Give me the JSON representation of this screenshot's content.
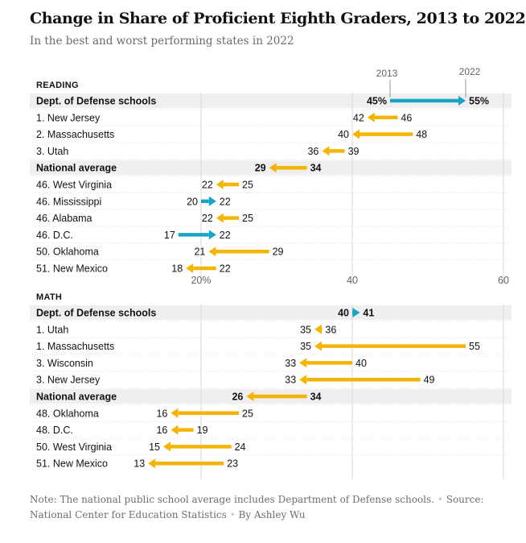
{
  "title": "Change in Share of Proficient Eighth Graders, 2013 to 2022",
  "subtitle": "In the best and worst performing states in 2022",
  "footer": {
    "note": "Note: The national public school average includes Department of Defense schools.",
    "source": "Source: National Center for Education Statistics",
    "byline": "By Ashley Wu",
    "separator": "•"
  },
  "chart_data": [
    {
      "type": "arrow-dot",
      "section": "READING",
      "legend": {
        "start": "2013",
        "end": "2022"
      },
      "axis": {
        "ticks": [
          20,
          40,
          60
        ],
        "tick_labels": [
          "20%",
          "40",
          "60"
        ],
        "xlim": [
          10,
          62
        ]
      },
      "colors": {
        "increase": "#1aa3c4",
        "decrease": "#f5b400"
      },
      "rows": [
        {
          "label": "Dept. of Defense schools",
          "start": 45,
          "end": 55,
          "start_label": "45%",
          "end_label": "55%",
          "highlight": true
        },
        {
          "label": "1. New Jersey",
          "start": 46,
          "end": 42
        },
        {
          "label": "2. Massachusetts",
          "start": 48,
          "end": 40
        },
        {
          "label": "3. Utah",
          "start": 39,
          "end": 36
        },
        {
          "label": "National average",
          "start": 34,
          "end": 29,
          "highlight": true
        },
        {
          "label": "46. West Virginia",
          "start": 25,
          "end": 22
        },
        {
          "label": "46. Mississippi",
          "start": 20,
          "end": 22
        },
        {
          "label": "46. Alabama",
          "start": 25,
          "end": 22
        },
        {
          "label": "46. D.C.",
          "start": 17,
          "end": 22
        },
        {
          "label": "50. Oklahoma",
          "start": 29,
          "end": 21
        },
        {
          "label": "51. New Mexico",
          "start": 22,
          "end": 18
        }
      ]
    },
    {
      "type": "arrow-dot",
      "section": "MATH",
      "axis": {
        "ticks": [
          20,
          40,
          60
        ],
        "xlim": [
          10,
          62
        ]
      },
      "colors": {
        "increase": "#1aa3c4",
        "decrease": "#f5b400"
      },
      "rows": [
        {
          "label": "Dept. of Defense schools",
          "start": 40,
          "end": 41,
          "highlight": true
        },
        {
          "label": "1. Utah",
          "start": 36,
          "end": 35
        },
        {
          "label": "1. Massachusetts",
          "start": 55,
          "end": 35
        },
        {
          "label": "3. Wisconsin",
          "start": 40,
          "end": 33
        },
        {
          "label": "3. New Jersey",
          "start": 49,
          "end": 33
        },
        {
          "label": "National average",
          "start": 34,
          "end": 26,
          "highlight": true
        },
        {
          "label": "48. Oklahoma",
          "start": 25,
          "end": 16
        },
        {
          "label": "48. D.C.",
          "start": 19,
          "end": 16
        },
        {
          "label": "50. West Virginia",
          "start": 24,
          "end": 15
        },
        {
          "label": "51. New Mexico",
          "start": 23,
          "end": 13
        }
      ]
    }
  ]
}
